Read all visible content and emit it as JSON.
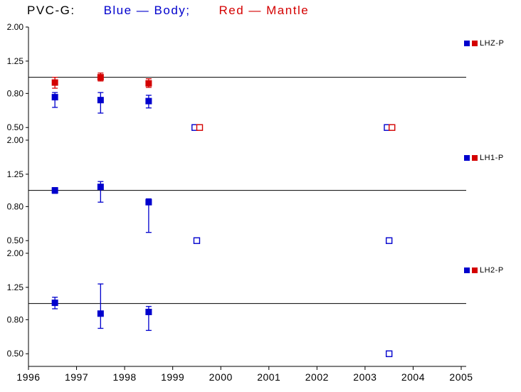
{
  "chart_data": {
    "type": "scatter",
    "title_parts": [
      {
        "text": "PVC-G:",
        "color": "#000000"
      },
      {
        "text": "Blue — Body;",
        "color": "#0000cd"
      },
      {
        "text": "Red — Mantle",
        "color": "#d40000"
      }
    ],
    "colors": {
      "body": "#0000cd",
      "mantle": "#d40000",
      "axis": "#000000"
    },
    "x_axis": {
      "min": 1996,
      "max": 2005,
      "ticks": [
        1996,
        1997,
        1998,
        1999,
        2000,
        2001,
        2002,
        2003,
        2004,
        2005
      ]
    },
    "y_axis": {
      "scale": "log",
      "min": 0.42,
      "max": 2.0,
      "ticks": [
        2.0,
        1.25,
        0.8,
        0.5
      ],
      "tick_labels": [
        "2.00",
        "1.25",
        "0.80",
        "0.50"
      ]
    },
    "reference_line_y": 1.0,
    "grid": false,
    "legend_position": "right",
    "panels": [
      {
        "label": "LHZ-P",
        "series": [
          {
            "name": "Body",
            "color_key": "body",
            "points": [
              {
                "x": 1996.55,
                "y": 0.76,
                "lo": 0.66,
                "hi": 0.81
              },
              {
                "x": 1997.5,
                "y": 0.73,
                "lo": 0.61,
                "hi": 0.81
              },
              {
                "x": 1998.5,
                "y": 0.72,
                "lo": 0.655,
                "hi": 0.78
              }
            ],
            "open_points": [
              {
                "x": 1999.46,
                "y": 0.5
              },
              {
                "x": 2003.46,
                "y": 0.5
              }
            ]
          },
          {
            "name": "Mantle",
            "color_key": "mantle",
            "points": [
              {
                "x": 1996.55,
                "y": 0.93,
                "lo": 0.86,
                "hi": 1.0
              },
              {
                "x": 1997.5,
                "y": 1.0,
                "lo": 0.95,
                "hi": 1.06
              },
              {
                "x": 1998.5,
                "y": 0.92,
                "lo": 0.87,
                "hi": 0.98
              }
            ],
            "open_points": [
              {
                "x": 1999.56,
                "y": 0.5
              },
              {
                "x": 2003.56,
                "y": 0.5
              }
            ]
          }
        ]
      },
      {
        "label": "LH1-P",
        "series": [
          {
            "name": "Body",
            "color_key": "body",
            "points": [
              {
                "x": 1996.55,
                "y": 1.0,
                "lo": 0.96,
                "hi": 1.04
              },
              {
                "x": 1997.5,
                "y": 1.05,
                "lo": 0.85,
                "hi": 1.13
              },
              {
                "x": 1998.5,
                "y": 0.85,
                "lo": 0.56,
                "hi": 0.89
              }
            ],
            "open_points": [
              {
                "x": 1999.5,
                "y": 0.5
              },
              {
                "x": 2003.5,
                "y": 0.5
              }
            ]
          },
          {
            "name": "Mantle",
            "color_key": "mantle",
            "points": [],
            "open_points": []
          }
        ]
      },
      {
        "label": "LH2-P",
        "series": [
          {
            "name": "Body",
            "color_key": "body",
            "points": [
              {
                "x": 1996.55,
                "y": 1.01,
                "lo": 0.93,
                "hi": 1.09
              },
              {
                "x": 1997.5,
                "y": 0.87,
                "lo": 0.71,
                "hi": 1.31
              },
              {
                "x": 1998.5,
                "y": 0.89,
                "lo": 0.69,
                "hi": 0.96
              }
            ],
            "open_points": [
              {
                "x": 2003.5,
                "y": 0.5
              }
            ]
          },
          {
            "name": "Mantle",
            "color_key": "mantle",
            "points": [],
            "open_points": []
          }
        ]
      }
    ]
  }
}
